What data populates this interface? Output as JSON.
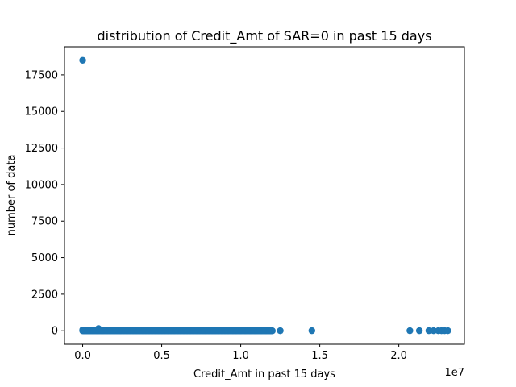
{
  "chart_data": {
    "type": "scatter",
    "title": "distribution of Credit_Amt of SAR=0 in past 15 days",
    "xlabel": "Credit_Amt in past 15 days",
    "ylabel": "number of data",
    "x_offset_label": "1e7",
    "x_scale": 10000000,
    "xlim": [
      -1150000,
      24150000
    ],
    "ylim": [
      -925,
      19425
    ],
    "xticks": [
      0,
      5000000,
      10000000,
      15000000,
      20000000
    ],
    "xtick_labels": [
      "0.0",
      "0.5",
      "1.0",
      "1.5",
      "2.0"
    ],
    "yticks": [
      0,
      2500,
      5000,
      7500,
      10000,
      12500,
      15000,
      17500
    ],
    "ytick_labels": [
      "0",
      "2500",
      "5000",
      "7500",
      "10000",
      "12500",
      "15000",
      "17500"
    ],
    "grid": false,
    "marker_color": "#1f77b4",
    "series": [
      {
        "points": [
          [
            0,
            18500
          ],
          [
            0,
            60
          ],
          [
            50000,
            40
          ],
          [
            100000,
            20
          ],
          [
            200000,
            30
          ],
          [
            300000,
            45
          ],
          [
            400000,
            25
          ],
          [
            500000,
            35
          ],
          [
            600000,
            15
          ],
          [
            700000,
            20
          ],
          [
            800000,
            30
          ],
          [
            900000,
            10
          ],
          [
            1000000,
            150
          ],
          [
            1100000,
            20
          ],
          [
            1200000,
            10
          ],
          [
            1300000,
            15
          ],
          [
            1400000,
            25
          ],
          [
            1500000,
            10
          ],
          [
            1600000,
            15
          ],
          [
            1800000,
            20
          ],
          [
            2000000,
            10
          ],
          [
            2200000,
            15
          ],
          [
            2400000,
            5
          ],
          [
            2600000,
            10
          ],
          [
            2800000,
            5
          ],
          [
            3000000,
            10
          ],
          [
            3200000,
            5
          ],
          [
            3400000,
            5
          ],
          [
            3600000,
            5
          ],
          [
            3800000,
            5
          ],
          [
            4000000,
            5
          ],
          [
            4200000,
            5
          ],
          [
            4400000,
            5
          ],
          [
            4600000,
            5
          ],
          [
            4800000,
            5
          ],
          [
            5000000,
            5
          ],
          [
            5200000,
            5
          ],
          [
            5400000,
            5
          ],
          [
            5600000,
            5
          ],
          [
            5800000,
            5
          ],
          [
            6000000,
            5
          ],
          [
            6200000,
            5
          ],
          [
            6400000,
            5
          ],
          [
            6600000,
            5
          ],
          [
            6800000,
            5
          ],
          [
            7000000,
            5
          ],
          [
            7200000,
            5
          ],
          [
            7400000,
            5
          ],
          [
            7600000,
            5
          ],
          [
            7800000,
            5
          ],
          [
            8000000,
            5
          ],
          [
            8200000,
            5
          ],
          [
            8400000,
            5
          ],
          [
            8600000,
            5
          ],
          [
            8800000,
            5
          ],
          [
            9000000,
            5
          ],
          [
            9200000,
            5
          ],
          [
            9500000,
            5
          ],
          [
            9700000,
            5
          ],
          [
            10000000,
            5
          ],
          [
            10300000,
            5
          ],
          [
            10600000,
            5
          ],
          [
            10900000,
            5
          ],
          [
            11300000,
            5
          ],
          [
            11600000,
            5
          ],
          [
            11900000,
            5
          ],
          [
            12500000,
            5
          ],
          [
            14500000,
            5
          ],
          [
            20700000,
            5
          ],
          [
            21300000,
            5
          ],
          [
            21900000,
            5
          ],
          [
            22200000,
            5
          ],
          [
            22500000,
            5
          ],
          [
            22700000,
            5
          ],
          [
            22900000,
            5
          ],
          [
            23100000,
            5
          ]
        ]
      }
    ]
  }
}
